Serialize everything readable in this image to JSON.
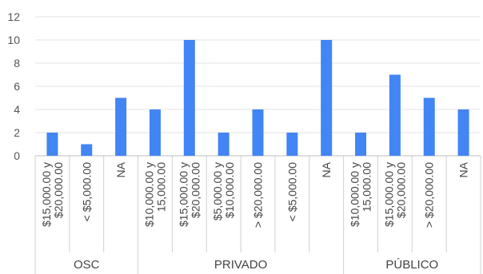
{
  "chart_data": {
    "type": "bar",
    "title": "",
    "xlabel": "",
    "ylabel": "",
    "ylim": [
      0,
      12
    ],
    "yticks": [
      0,
      2,
      4,
      6,
      8,
      10,
      12
    ],
    "grid": true,
    "legend": "none",
    "bar_color": "#4285f4",
    "groups": [
      {
        "name": "OSC",
        "items": [
          {
            "label": [
              "$15,000.00 y",
              "$20,000.00"
            ],
            "value": 2
          },
          {
            "label": [
              "< $5,000.00"
            ],
            "value": 1
          },
          {
            "label": [
              "NA"
            ],
            "value": 5
          }
        ]
      },
      {
        "name": "PRIVADO",
        "items": [
          {
            "label": [
              "$10,000.00 y",
              "15,000.00"
            ],
            "value": 4
          },
          {
            "label": [
              "$15,000.00 y",
              "$20,000.00"
            ],
            "value": 10
          },
          {
            "label": [
              "$5,000.00 y",
              "$10,000.00"
            ],
            "value": 2
          },
          {
            "label": [
              "> $20,000.00"
            ],
            "value": 4
          },
          {
            "label": [
              "< $5,000.00"
            ],
            "value": 2
          },
          {
            "label": [
              "NA"
            ],
            "value": 10
          }
        ]
      },
      {
        "name": "PÚBLICO",
        "items": [
          {
            "label": [
              "$10,000.00 y",
              "15,000.00"
            ],
            "value": 2
          },
          {
            "label": [
              "$15,000.00 y",
              "$20,000.00"
            ],
            "value": 7
          },
          {
            "label": [
              "> $20,000.00"
            ],
            "value": 5
          },
          {
            "label": [
              "NA"
            ],
            "value": 4
          }
        ]
      }
    ]
  }
}
